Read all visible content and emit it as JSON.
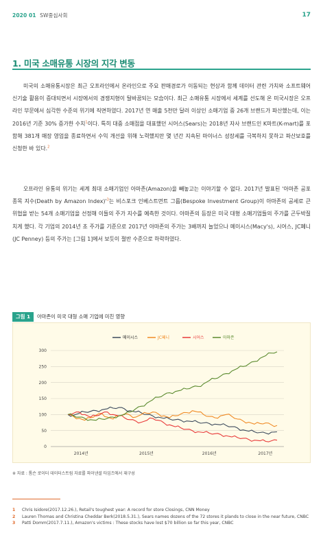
{
  "header": {
    "issue": "2020 01",
    "magazine": "SW중심사회",
    "page": "17"
  },
  "section": {
    "title": "1. 미국 소매유통 시장의 지각 변동"
  },
  "paragraphs": {
    "p1": {
      "text_a": "미국의 소매유통시장은 최근 오프라인에서 온라인으로 주요 판매경로가 이동되는 현상과 함께 데이터 관련 가치와 소프트웨어 신기술 활용이 증대되면서 시장에서의 경쟁지형이 탈바꿈되는 모습이다. 최근 소매유통 시장에서 세계를 선도해 온 미국시장은 오프라인 부문에서 심각한 수준의 위기에 직면하였다. 2017년 연 매출 5천만 달러 이상인 소매기업 중 26개 브랜드가 파산했는데, 이는 2016년 기준 30% 증가한 수치",
      "sup_a": "1",
      "text_b": "이다. 특히 대중 소매점을 대표했던 시어스(Sears)는 2018년 자사 브랜드인 K마트(K-mart)를 포함해 381개 매장 영업을 종료하면서 수익 개선을 위해 노력했지만 몇 년간 지속된 마이너스 성장세를 극복하지 못하고 파산보호를 신청한 바 있다.",
      "sup_b": "2"
    },
    "p2": {
      "text_a": "오프라인 유통의 위기는 세계 최대 소매기업인 아마존(Amazon)을 빼놓고는 이야기할 수 없다. 2017년 발표된 '아마존 공포 종목 지수(Death by Amazon Index)'",
      "sup_a": "3",
      "text_b": "는 비스포크 인베스트먼트 그룹(Bespoke Investment Group)이 아마존의 공세로 큰 위협을 받는 54개 소매기업을 선정해 이들의 주가 지수를 예측한 것이다. 아마존의 등장은 미국 대형 소매기업들의 주가를 곤두박질치게 했다. 각 기업의 2014년 초 주가를 기준으로 2017년 아마존의 주가는 3배까지 늘었으나 메이시스(Macy's), 시어스, JC페니(JC Penney) 등의 주가는 [그림 1]에서 보듯이 절반 수준으로 하락하였다."
    }
  },
  "figure": {
    "badge": "그림 1",
    "title": "아마존이 미국 대형 소매 기업에 미친 영향",
    "source": "※ 자료 : 톰슨 로이터 데이터스트림 자료를 파이낸셜 타임즈에서 재구성"
  },
  "chart_data": {
    "type": "line",
    "x_ticks": [
      "2014년",
      "2015년",
      "2016년",
      "2017년"
    ],
    "ylim": [
      0,
      300
    ],
    "y_ticks": [
      0,
      50,
      100,
      150,
      200,
      250,
      300
    ],
    "grid": true,
    "legend_position": "top-center",
    "series": [
      {
        "name": "메이시스",
        "color": "#3c4a5c",
        "values": [
          100,
          98,
          104,
          108,
          110,
          112,
          115,
          118,
          120,
          122,
          118,
          112,
          108,
          105,
          100,
          96,
          92,
          88,
          86,
          84,
          82,
          80,
          78,
          76,
          74,
          72,
          70,
          68,
          66,
          62,
          58,
          52,
          48,
          46,
          44,
          42,
          45,
          46
        ]
      },
      {
        "name": "JC페니",
        "color": "#f08a24",
        "values": [
          100,
          94,
          88,
          82,
          90,
          98,
          104,
          92,
          86,
          96,
          102,
          98,
          92,
          100,
          104,
          108,
          102,
          96,
          90,
          96,
          102,
          106,
          112,
          108,
          100,
          94,
          90,
          96,
          100,
          94,
          86,
          80,
          76,
          70,
          72,
          74,
          68,
          66
        ]
      },
      {
        "name": "시어스",
        "color": "#e83a3a",
        "values": [
          100,
          104,
          108,
          100,
          92,
          96,
          104,
          108,
          100,
          96,
          90,
          84,
          80,
          76,
          82,
          88,
          82,
          74,
          68,
          62,
          58,
          54,
          50,
          46,
          44,
          42,
          40,
          38,
          34,
          30,
          28,
          26,
          22,
          20,
          18,
          16,
          18,
          20
        ]
      },
      {
        "name": "아마존",
        "color": "#5a8a2e",
        "values": [
          100,
          96,
          92,
          88,
          84,
          82,
          86,
          88,
          92,
          96,
          100,
          108,
          118,
          126,
          136,
          146,
          154,
          162,
          168,
          172,
          176,
          180,
          186,
          188,
          196,
          206,
          212,
          220,
          228,
          236,
          244,
          250,
          258,
          266,
          276,
          284,
          292,
          296
        ]
      }
    ]
  },
  "footnotes": [
    {
      "num": "1",
      "text": "Chris Isidore(2017.12.26.), Retail's toughest year: A record for store Closings, CNN Money"
    },
    {
      "num": "2",
      "text": "Lauren Thomas and Christina Cheddar Berk(2018.5.31.), Sears names dozens of the 72 stores it plands to close in the near future, CNBC"
    },
    {
      "num": "3",
      "text": "Patti Domm(2017.7.11.), Amazon's victims : These stocks have lost $70 billion so far this year, CNBC"
    }
  ]
}
